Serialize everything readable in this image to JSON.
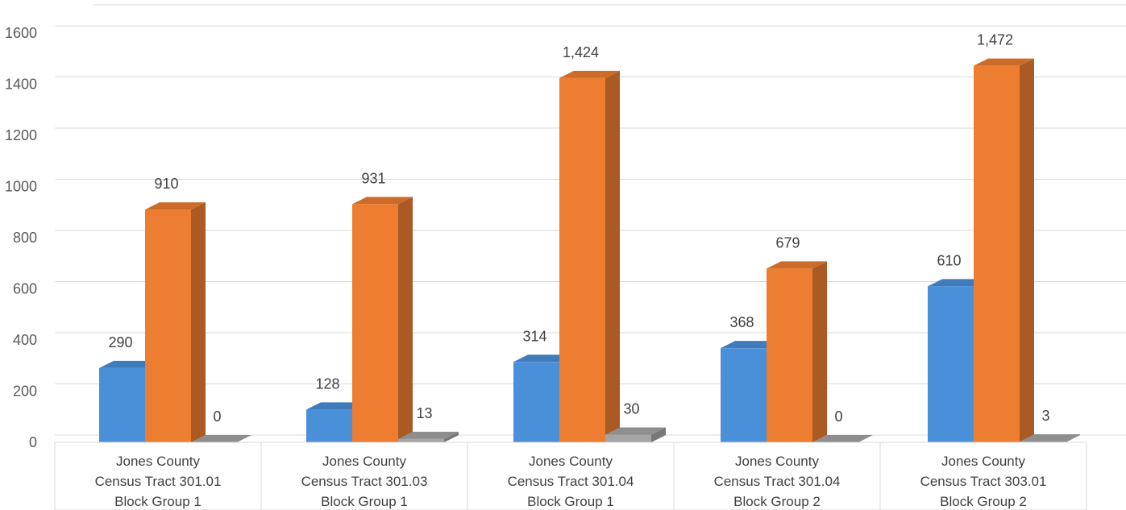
{
  "chart_data": {
    "type": "bar",
    "style": "3d-clustered-column",
    "title": "",
    "xlabel": "",
    "ylabel": "",
    "ylim": [
      0,
      1600
    ],
    "yticks": [
      0,
      200,
      400,
      600,
      800,
      1000,
      1200,
      1400,
      1600
    ],
    "grid": true,
    "legend": "none",
    "categories": [
      [
        "Jones County",
        "Census Tract 301.01",
        "Block Group 1"
      ],
      [
        "Jones County",
        "Census Tract 301.03",
        "Block Group 1"
      ],
      [
        "Jones County",
        "Census Tract 301.04",
        "Block Group 1"
      ],
      [
        "Jones County",
        "Census Tract 301.04",
        "Block Group 2"
      ],
      [
        "Jones County",
        "Census Tract 303.01",
        "Block Group 2"
      ]
    ],
    "series": [
      {
        "color": "#4a90d9",
        "values": [
          290,
          128,
          314,
          368,
          610
        ],
        "labels": [
          "290",
          "128",
          "314",
          "368",
          "610"
        ]
      },
      {
        "color": "#ed7d31",
        "values": [
          910,
          931,
          1424,
          679,
          1472
        ],
        "labels": [
          "910",
          "931",
          "1,424",
          "679",
          "1,472"
        ]
      },
      {
        "color": "#a5a5a5",
        "values": [
          0,
          13,
          30,
          0,
          3
        ],
        "labels": [
          "0",
          "13",
          "30",
          "0",
          "3"
        ]
      }
    ]
  }
}
